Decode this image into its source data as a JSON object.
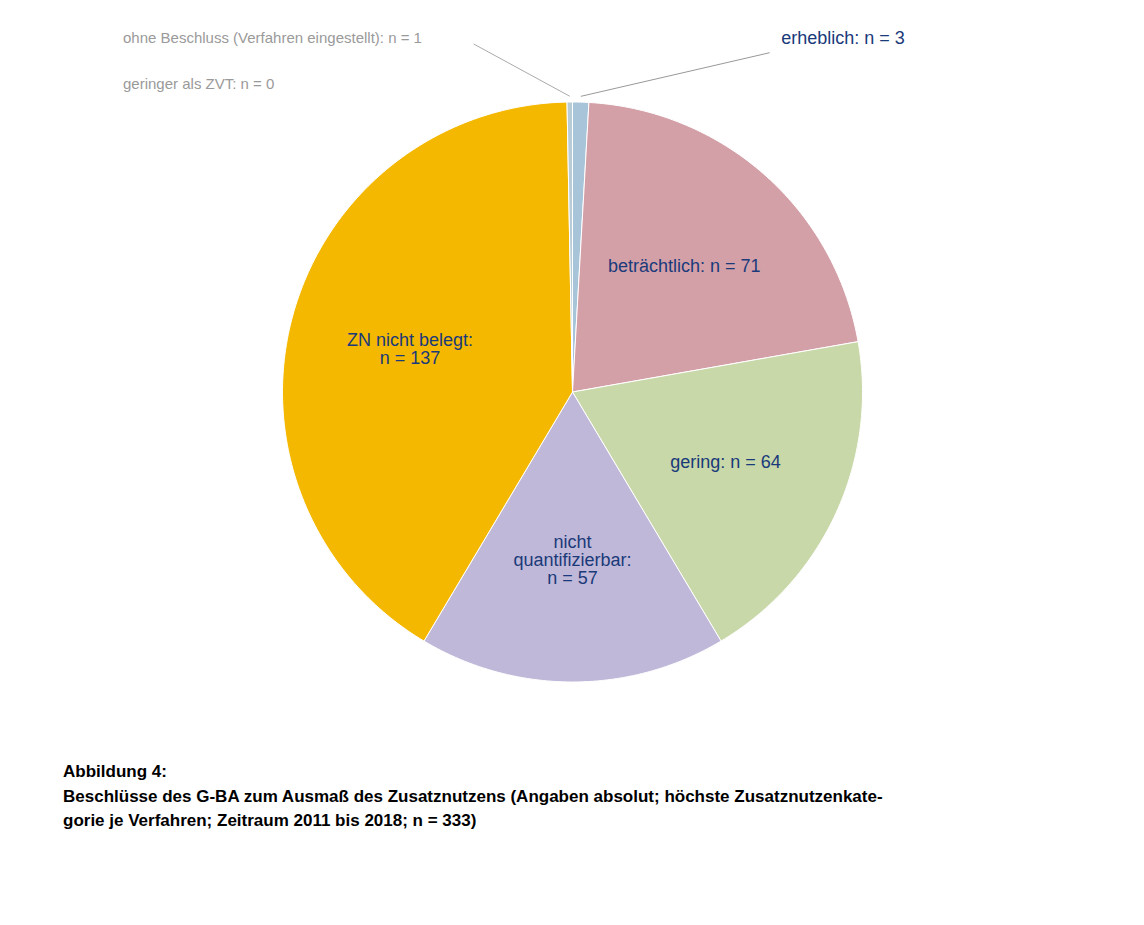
{
  "chart_data": {
    "type": "pie",
    "title": "Abbildung 4:",
    "subtitle": "Beschlüsse des G-BA zum Ausmaß des Zusatznutzens (Angaben absolut; höchste Zusatznutzenkate-\ngorie je Verfahren; Zeitraum 2011 bis 2018; n = 333)",
    "categories": [
      "erheblich",
      "beträchtlich",
      "gering",
      "nicht quantifizierbar",
      "ZN nicht belegt",
      "ohne Beschluss (Verfahren eingestellt)",
      "geringer als ZVT"
    ],
    "values": [
      3,
      71,
      64,
      57,
      137,
      1,
      0.0001
    ],
    "value_labels": [
      "erheblich: n = 3",
      "beträchtlich: n = 71",
      "gering: n = 64",
      "nicht\nquantifizierbar:\nn = 57",
      "ZN nicht belegt:\nn = 137",
      "ohne Beschluss (Verfahren eingestellt): n = 1",
      "geringer als ZVT: n = 0"
    ],
    "colors": [
      "#a8c4d8",
      "#d4a0a8",
      "#c8d8a8",
      "#c0b8d8",
      "#f5b800",
      "#b8ccd8",
      "#d0d0d0"
    ],
    "data_labels": true
  }
}
